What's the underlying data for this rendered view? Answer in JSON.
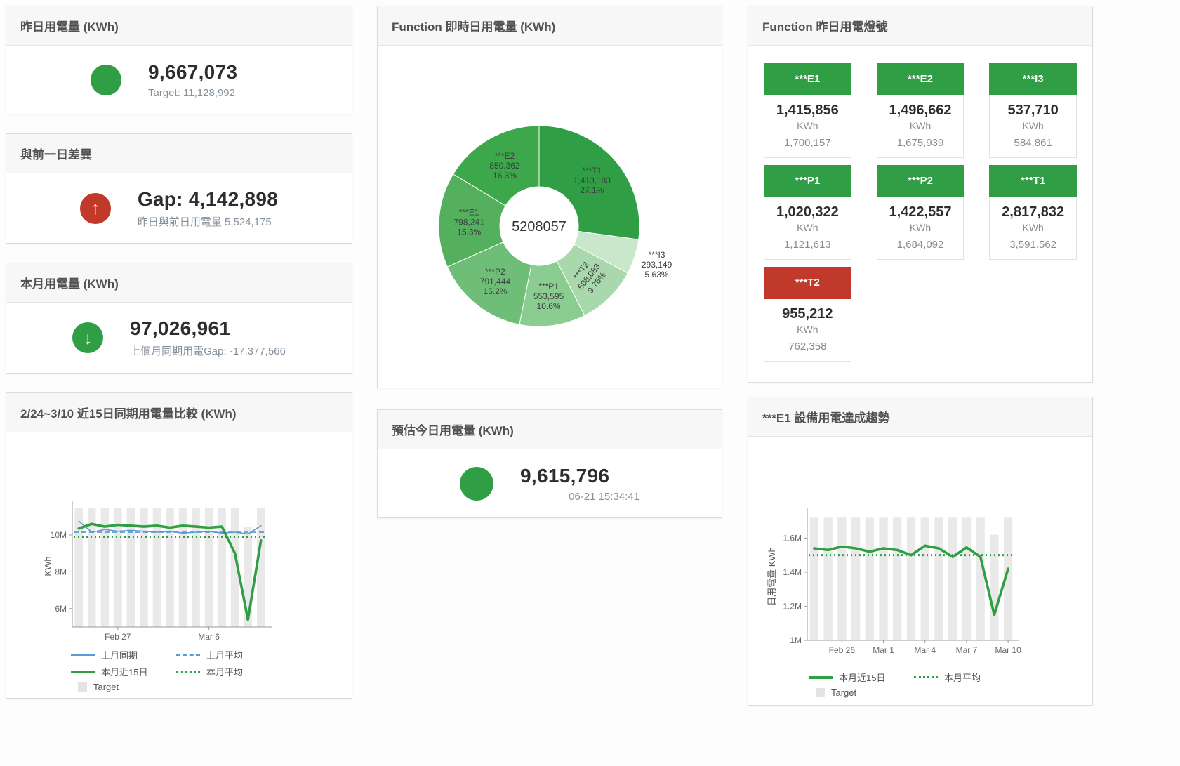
{
  "colors": {
    "green": "#2f9e44",
    "red": "#c0392b",
    "blue": "#5b9bd5",
    "bar_gray": "#e9e9e9",
    "legend_target_gray": "#e3e3e3"
  },
  "icons": {
    "arrow_up": "↑",
    "arrow_down": "↓"
  },
  "cards": {
    "yesterday": {
      "title": "昨日用電量 (KWh)",
      "value": "9,667,073",
      "subtitle": "Target: 11,128,992"
    },
    "diff": {
      "title": "與前一日差異",
      "value": "Gap: 4,142,898",
      "subtitle": "昨日與前日用電量 5,524,175"
    },
    "month": {
      "title": "本月用電量 (KWh)",
      "value": "97,026,961",
      "subtitle": "上個月同期用電Gap: -17,377,566"
    },
    "estimate": {
      "title": "預估今日用電量 (KWh)",
      "value": "9,615,796",
      "subtitle": "06-21 15:34:41"
    },
    "lights": {
      "title": "Function 昨日用電燈號",
      "unit": "KWh",
      "tiles": [
        {
          "name": "***E1",
          "value": "1,415,856",
          "target": "1,700,157",
          "color": "green"
        },
        {
          "name": "***E2",
          "value": "1,496,662",
          "target": "1,675,939",
          "color": "green"
        },
        {
          "name": "***I3",
          "value": "537,710",
          "target": "584,861",
          "color": "green"
        },
        {
          "name": "***P1",
          "value": "1,020,322",
          "target": "1,121,613",
          "color": "green"
        },
        {
          "name": "***P2",
          "value": "1,422,557",
          "target": "1,684,092",
          "color": "green"
        },
        {
          "name": "***T1",
          "value": "2,817,832",
          "target": "3,591,562",
          "color": "green"
        },
        {
          "name": "***T2",
          "value": "955,212",
          "target": "762,358",
          "color": "red"
        }
      ]
    }
  },
  "chart_data": [
    {
      "type": "pie",
      "title": "Function 即時日用電量 (KWh)",
      "center_label": "5208057",
      "slices": [
        {
          "name": "***T1",
          "value": 1413183,
          "value_label": "1,413,183",
          "percent": "27.1%",
          "color": "#2f9e44"
        },
        {
          "name": "***I3",
          "value": 293149,
          "value_label": "293,149",
          "percent": "5.63%",
          "color": "#c9e7cb"
        },
        {
          "name": "***T2",
          "value": 508083,
          "value_label": "508,083",
          "percent": "9.76%",
          "color": "#a8d8ac"
        },
        {
          "name": "***P1",
          "value": 553595,
          "value_label": "553,595",
          "percent": "10.6%",
          "color": "#8bcc91"
        },
        {
          "name": "***P2",
          "value": 791444,
          "value_label": "791,444",
          "percent": "15.2%",
          "color": "#6fbe77"
        },
        {
          "name": "***E1",
          "value": 798241,
          "value_label": "798,241",
          "percent": "15.3%",
          "color": "#55b05e"
        },
        {
          "name": "***E2",
          "value": 850362,
          "value_label": "850,362",
          "percent": "16.3%",
          "color": "#3da74b"
        }
      ]
    },
    {
      "type": "line",
      "title": "2/24~3/10 近15日同期用電量比較 (KWh)",
      "ylabel": "KWh",
      "ylim": [
        5000000,
        11600000
      ],
      "yticks": [
        {
          "v": 6000000,
          "t": "6M"
        },
        {
          "v": 8000000,
          "t": "8M"
        },
        {
          "v": 10000000,
          "t": "10M"
        }
      ],
      "xticks": [
        {
          "i": 3,
          "t": "Feb 27"
        },
        {
          "i": 10,
          "t": "Mar 6"
        }
      ],
      "legend_target": "Target",
      "target_bars": [
        11450000,
        11450000,
        11450000,
        11450000,
        11450000,
        11450000,
        11450000,
        11450000,
        11450000,
        11450000,
        11450000,
        11450000,
        11450000,
        10450000,
        11450000
      ],
      "series": [
        {
          "name": "上月同期",
          "style": "thin",
          "color": "#5b9bd5",
          "values": [
            10750000,
            10150000,
            10300000,
            10200000,
            10250000,
            10200000,
            10150000,
            10200000,
            10100000,
            10150000,
            10200000,
            10100000,
            10150000,
            10050000,
            10500000
          ]
        },
        {
          "name": "上月平均",
          "style": "dashed",
          "color": "#5b9bd5",
          "value": 10150000
        },
        {
          "name": "本月近15日",
          "style": "thick",
          "color": "#2f9e44",
          "values": [
            10350000,
            10600000,
            10450000,
            10550000,
            10500000,
            10450000,
            10500000,
            10400000,
            10500000,
            10450000,
            10400000,
            10450000,
            9000000,
            5400000,
            9700000
          ]
        },
        {
          "name": "本月平均",
          "style": "dotted",
          "color": "#2f9e44",
          "value": 9900000
        }
      ]
    },
    {
      "type": "line",
      "title": "***E1 設備用電達成趨勢",
      "ylabel": "日用電量 KWh",
      "ylim": [
        1000000,
        1750000
      ],
      "yticks": [
        {
          "v": 1000000,
          "t": "1M"
        },
        {
          "v": 1200000,
          "t": "1.2M"
        },
        {
          "v": 1400000,
          "t": "1.4M"
        },
        {
          "v": 1600000,
          "t": "1.6M"
        }
      ],
      "xticks": [
        {
          "i": 2,
          "t": "Feb 26"
        },
        {
          "i": 5,
          "t": "Mar 1"
        },
        {
          "i": 8,
          "t": "Mar 4"
        },
        {
          "i": 11,
          "t": "Mar 7"
        },
        {
          "i": 14,
          "t": "Mar 10"
        }
      ],
      "legend_target": "Target",
      "target_bars": [
        1720000,
        1720000,
        1720000,
        1720000,
        1720000,
        1720000,
        1720000,
        1720000,
        1720000,
        1720000,
        1720000,
        1720000,
        1720000,
        1620000,
        1720000
      ],
      "series": [
        {
          "name": "本月近15日",
          "style": "thick",
          "color": "#2f9e44",
          "values": [
            1540000,
            1530000,
            1550000,
            1540000,
            1520000,
            1540000,
            1530000,
            1500000,
            1555000,
            1540000,
            1490000,
            1545000,
            1490000,
            1150000,
            1420000
          ]
        },
        {
          "name": "本月平均",
          "style": "dotted",
          "color": "#2f9e44",
          "value": 1500000
        }
      ]
    }
  ]
}
